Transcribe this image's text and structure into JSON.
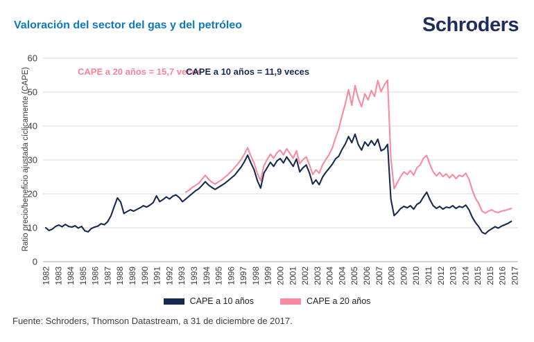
{
  "header": {
    "title": "Valoración del sector del gas y del petróleo",
    "logo": "Schroders",
    "title_color": "#0e79bf",
    "logo_color": "#1f2d5a"
  },
  "chart_data": {
    "type": "line",
    "title": "Valoración del sector del gas y del petróleo",
    "xlabel": "",
    "ylabel": "Ratio precio/beneficio ajustada cíclicamente (CAPE)",
    "ylim": [
      0,
      60
    ],
    "yticks": [
      0,
      10,
      20,
      30,
      40,
      50,
      60
    ],
    "xlim": [
      1982,
      2018
    ],
    "x_tick_labels": [
      "1982",
      "1983",
      "1984",
      "1985",
      "1986",
      "1987",
      "1988",
      "1989",
      "1990",
      "1991",
      "1992",
      "1993",
      "1993",
      "1994",
      "1995",
      "1996",
      "1997",
      "1998",
      "1999",
      "2000",
      "2001",
      "2002",
      "2003",
      "2004",
      "2004",
      "2005",
      "2006",
      "2007",
      "2008",
      "2009",
      "2010",
      "2011",
      "2012",
      "2013",
      "2014",
      "2015",
      "2015",
      "2016",
      "2017"
    ],
    "grid": "horizontal",
    "legend_position": "bottom",
    "annotations": [
      {
        "text": "CAPE a 20 años = 15,7 veces",
        "color": "#f9849b"
      },
      {
        "text": "CAPE a 10 años = 11,9 veces",
        "color": "#16294f"
      }
    ],
    "series": [
      {
        "name": "CAPE a 20 años",
        "color": "#f98aa0",
        "final_value_label": "15,7 veces",
        "x_start": 1992.75,
        "x_step": 0.25,
        "values": [
          20.5,
          21.1,
          21.9,
          22.5,
          23.1,
          24.3,
          25.5,
          24.3,
          23.5,
          22.9,
          23.5,
          24.1,
          24.9,
          25.7,
          26.7,
          27.7,
          28.9,
          30.1,
          31.7,
          33.6,
          31.1,
          29.1,
          26.1,
          23.9,
          28.3,
          30.1,
          31.7,
          30.5,
          32.1,
          32.9,
          31.5,
          33.3,
          31.9,
          30.5,
          32.7,
          28.9,
          30.1,
          30.9,
          28.5,
          25.7,
          27.1,
          26.1,
          28.5,
          30.1,
          31.5,
          33.5,
          36.5,
          39.1,
          43.1,
          46.5,
          50.7,
          46.1,
          51.9,
          48.1,
          45.7,
          49.5,
          47.7,
          50.5,
          48.7,
          53.4,
          50.1,
          52.1,
          53.5,
          30.5,
          21.5,
          23.3,
          25.1,
          26.5,
          25.7,
          26.9,
          25.5,
          27.7,
          28.5,
          30.5,
          31.3,
          28.7,
          26.5,
          25.3,
          26.3,
          25.1,
          25.9,
          24.7,
          25.7,
          24.5,
          25.5,
          25.1,
          26.1,
          24.3,
          21.1,
          18.7,
          17.1,
          14.9,
          14.3,
          14.9,
          15.3,
          14.7,
          14.5,
          14.9,
          15.1,
          15.4,
          15.7
        ]
      },
      {
        "name": "CAPE a 10 años",
        "color": "#16294f",
        "final_value_label": "11,9 veces",
        "x_start": 1982.0,
        "x_step": 0.25,
        "values": [
          10.0,
          9.2,
          9.6,
          10.4,
          10.8,
          10.3,
          11.0,
          10.4,
          10.2,
          10.6,
          9.9,
          10.4,
          9.1,
          8.8,
          9.8,
          10.2,
          10.5,
          11.2,
          10.9,
          11.8,
          13.5,
          16.2,
          18.8,
          17.6,
          14.2,
          14.8,
          15.3,
          14.9,
          15.4,
          15.9,
          16.5,
          16.1,
          16.7,
          17.4,
          19.4,
          17.7,
          18.3,
          19.1,
          18.5,
          19.3,
          19.7,
          18.9,
          17.7,
          18.5,
          19.3,
          20.1,
          20.9,
          21.5,
          22.5,
          23.6,
          22.6,
          21.9,
          21.3,
          21.9,
          22.5,
          23.1,
          23.9,
          24.7,
          25.5,
          26.7,
          27.9,
          29.5,
          31.4,
          29.1,
          27.1,
          23.9,
          21.7,
          26.1,
          27.7,
          29.3,
          28.1,
          29.7,
          30.4,
          29.1,
          30.9,
          29.5,
          28.1,
          30.3,
          26.5,
          27.7,
          28.5,
          26.1,
          22.9,
          24.1,
          22.7,
          24.9,
          26.3,
          27.5,
          28.7,
          30.3,
          31.1,
          33.1,
          34.7,
          36.9,
          35.1,
          37.6,
          34.5,
          32.9,
          35.3,
          34.1,
          35.7,
          34.3,
          36.1,
          32.7,
          33.2,
          34.6,
          18.5,
          13.6,
          14.5,
          15.7,
          16.3,
          15.9,
          16.5,
          15.5,
          16.9,
          17.5,
          19.1,
          20.5,
          18.3,
          16.5,
          15.7,
          16.3,
          15.5,
          16.1,
          15.9,
          16.5,
          15.7,
          16.3,
          16.0,
          16.7,
          15.3,
          13.1,
          11.5,
          10.3,
          8.7,
          8.2,
          9.1,
          9.7,
          10.3,
          9.9,
          10.5,
          10.9,
          11.3,
          11.9
        ]
      }
    ],
    "colors": {
      "gridline": "#d9d9d9",
      "axis_line": "#a8a8a8",
      "tick_label": "#3d3d3d"
    }
  },
  "legend": {
    "items": [
      {
        "label": "CAPE a 10 años",
        "color": "#16294f"
      },
      {
        "label": "CAPE a 20 años",
        "color": "#f98aa0"
      }
    ]
  },
  "footer": {
    "source": "Fuente: Schroders, Thomson Datastream, a 31 de diciembre de 2017."
  }
}
